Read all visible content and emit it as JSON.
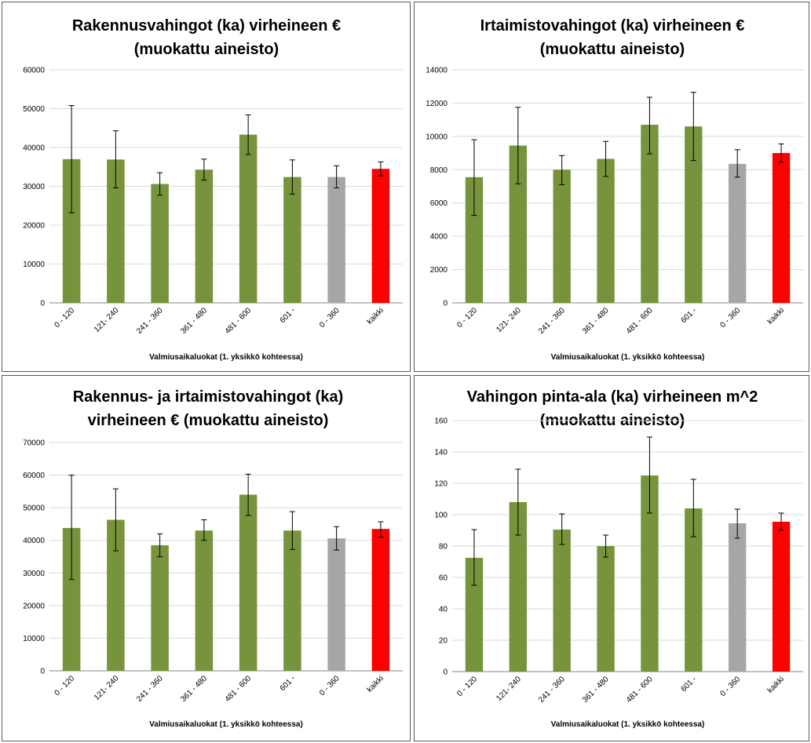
{
  "chart_data": [
    {
      "type": "bar",
      "title_lines": [
        "Rakennusvahingot (ka) virheineen €",
        "(muokattu aineisto)"
      ],
      "xlabel": "Valmiusaikaluokat  (1. yksikkö kohteessa)",
      "ylabel": "",
      "categories": [
        "0 - 120",
        "121- 240",
        "241 - 360",
        "361 - 480",
        "481 - 600",
        "601 -",
        "0 - 360",
        "kaikki"
      ],
      "values": [
        37000,
        36900,
        30600,
        34300,
        43300,
        32400,
        32400,
        34500
      ],
      "error_low": [
        23200,
        29600,
        27700,
        31600,
        38200,
        28000,
        29600,
        32700
      ],
      "error_high": [
        50800,
        44300,
        33500,
        37000,
        48400,
        36800,
        35300,
        36300
      ],
      "bar_colors": [
        "#77933c",
        "#77933c",
        "#77933c",
        "#77933c",
        "#77933c",
        "#77933c",
        "#a6a6a6",
        "#ff0000"
      ],
      "ylim": [
        0,
        60000
      ],
      "yticks": [
        "0",
        "10000",
        "20000",
        "30000",
        "40000",
        "50000",
        "60000"
      ],
      "grid": true,
      "legend": "none"
    },
    {
      "type": "bar",
      "title_lines": [
        "Irtaimistovahingot (ka) virheineen €",
        "(muokattu aineisto)"
      ],
      "xlabel": "Valmiusaikaluokat  (1. yksikkö kohteessa)",
      "ylabel": "",
      "categories": [
        "0 - 120",
        "121- 240",
        "241 - 360",
        "361 - 480",
        "481 - 600",
        "601 -",
        "0 - 360",
        "kaikki"
      ],
      "values": [
        7550,
        9450,
        8000,
        8650,
        10700,
        10600,
        8350,
        9000
      ],
      "error_low": [
        5250,
        7150,
        7100,
        7600,
        8950,
        8550,
        7550,
        8450
      ],
      "error_high": [
        9800,
        11750,
        8850,
        9700,
        12350,
        12650,
        9200,
        9550
      ],
      "bar_colors": [
        "#77933c",
        "#77933c",
        "#77933c",
        "#77933c",
        "#77933c",
        "#77933c",
        "#a6a6a6",
        "#ff0000"
      ],
      "ylim": [
        0,
        14000
      ],
      "yticks": [
        "0",
        "2000",
        "4000",
        "6000",
        "8000",
        "10000",
        "12000",
        "14000"
      ],
      "grid": true,
      "legend": "none"
    },
    {
      "type": "bar",
      "title_lines": [
        "Rakennus- ja irtaimistovahingot (ka)",
        "virheineen € (muokattu aineisto)"
      ],
      "xlabel": "Valmiusaikaluokat  (1. yksikkö kohteessa)",
      "ylabel": "",
      "categories": [
        "0 - 120",
        "121- 240",
        "241 - 360",
        "361 - 480",
        "481 - 600",
        "601 -",
        "0 - 360",
        "kaikki"
      ],
      "values": [
        43800,
        46300,
        38500,
        43000,
        54000,
        43000,
        40600,
        43500
      ],
      "error_low": [
        28000,
        36800,
        35000,
        40000,
        47600,
        37200,
        37000,
        41000
      ],
      "error_high": [
        60000,
        55800,
        42000,
        46300,
        60300,
        48800,
        44200,
        45700
      ],
      "bar_colors": [
        "#77933c",
        "#77933c",
        "#77933c",
        "#77933c",
        "#77933c",
        "#77933c",
        "#a6a6a6",
        "#ff0000"
      ],
      "ylim": [
        0,
        70000
      ],
      "yticks": [
        "0",
        "10000",
        "20000",
        "30000",
        "40000",
        "50000",
        "60000",
        "70000"
      ],
      "grid": true,
      "legend": "none"
    },
    {
      "type": "bar",
      "title_lines": [
        "Vahingon pinta-ala (ka) virheineen m^2",
        "(muokattu aineisto)"
      ],
      "xlabel": "Valmiusaikaluokat  (1. yksikkö kohteessa)",
      "ylabel": "",
      "categories": [
        "0 - 120",
        "121- 240",
        "241 - 360",
        "361 - 480",
        "481 - 600",
        "601 -",
        "0 - 360",
        "kaikki"
      ],
      "values": [
        72.5,
        108,
        90.5,
        80,
        125,
        104,
        94.5,
        95.5
      ],
      "error_low": [
        55,
        87,
        81,
        73,
        101,
        86,
        85,
        90
      ],
      "error_high": [
        90.5,
        129,
        100.5,
        87,
        149.5,
        122.5,
        103.5,
        101
      ],
      "bar_colors": [
        "#77933c",
        "#77933c",
        "#77933c",
        "#77933c",
        "#77933c",
        "#77933c",
        "#a6a6a6",
        "#ff0000"
      ],
      "ylim": [
        0,
        160
      ],
      "yticks": [
        "0",
        "20",
        "40",
        "60",
        "80",
        "100",
        "120",
        "140",
        "160"
      ],
      "grid": true,
      "legend": "none"
    }
  ]
}
